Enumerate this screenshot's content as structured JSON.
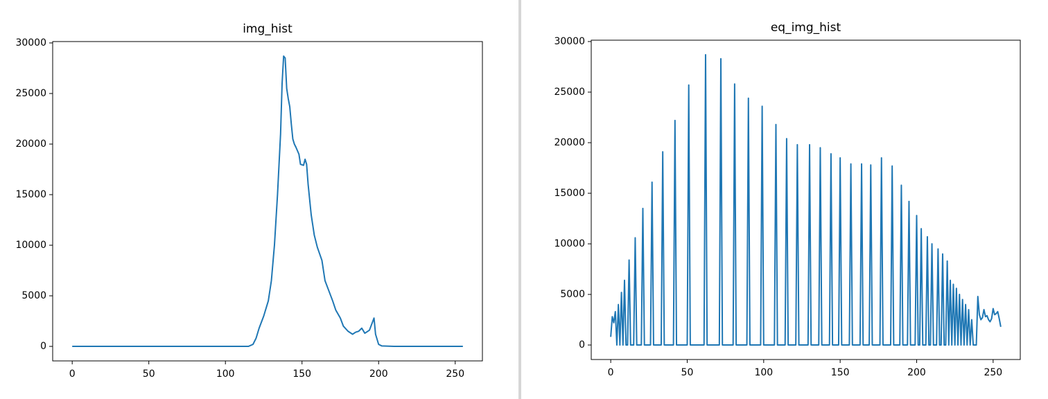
{
  "chart_data": [
    {
      "type": "line",
      "title": "img_hist",
      "color": "#1f77b4",
      "xlim": [
        -12.75,
        267.75
      ],
      "ylim": [
        -1435,
        30135
      ],
      "xticks": [
        0,
        50,
        100,
        150,
        200,
        250
      ],
      "yticks": [
        0,
        5000,
        10000,
        15000,
        20000,
        25000,
        30000
      ],
      "x": [
        0,
        115,
        118,
        120,
        122,
        125,
        128,
        130,
        132,
        134,
        136,
        137,
        138,
        139,
        140,
        141,
        142,
        143,
        144,
        145,
        146,
        148,
        149,
        151,
        152,
        153,
        154,
        156,
        158,
        160,
        163,
        165,
        167,
        170,
        172,
        175,
        177,
        180,
        183,
        185,
        187,
        189,
        191,
        194,
        196,
        197,
        198,
        200,
        202,
        210,
        255
      ],
      "values": [
        0,
        0,
        200,
        800,
        1800,
        3000,
        4500,
        6500,
        10000,
        15000,
        21000,
        26000,
        28700,
        28500,
        25500,
        24500,
        23700,
        22000,
        20500,
        20000,
        19700,
        19000,
        18000,
        17900,
        18500,
        18000,
        16000,
        13000,
        11000,
        9800,
        8500,
        6500,
        5700,
        4500,
        3600,
        2800,
        2000,
        1500,
        1200,
        1400,
        1500,
        1800,
        1300,
        1600,
        2400,
        2800,
        1200,
        200,
        50,
        0,
        0
      ]
    },
    {
      "type": "line",
      "title": "eq_img_hist",
      "color": "#1f77b4",
      "xlim": [
        -12.75,
        267.75
      ],
      "ylim": [
        -1435,
        30135
      ],
      "xticks": [
        0,
        50,
        100,
        150,
        200,
        250
      ],
      "yticks": [
        0,
        5000,
        10000,
        15000,
        20000,
        25000,
        30000
      ],
      "x": [
        0,
        1,
        2,
        3,
        4,
        5,
        6,
        7,
        8,
        9,
        10,
        11,
        12,
        13,
        15,
        16,
        17,
        20,
        21,
        22,
        26,
        27,
        28,
        33,
        34,
        35,
        41,
        42,
        43,
        50,
        51,
        52,
        61,
        62,
        63,
        71,
        72,
        73,
        80,
        81,
        82,
        89,
        90,
        91,
        98,
        99,
        100,
        107,
        108,
        109,
        114,
        115,
        116,
        121,
        122,
        123,
        129,
        130,
        131,
        136,
        137,
        138,
        143,
        144,
        145,
        149,
        150,
        151,
        156,
        157,
        158,
        163,
        164,
        165,
        169,
        170,
        171,
        176,
        177,
        178,
        183,
        184,
        185,
        189,
        190,
        191,
        194,
        195,
        196,
        199,
        200,
        201,
        202,
        203,
        204,
        206,
        207,
        208,
        209,
        210,
        211,
        213,
        214,
        215,
        216,
        217,
        218,
        219,
        220,
        221,
        222,
        223,
        224,
        225,
        226,
        227,
        228,
        229,
        230,
        231,
        232,
        233,
        234,
        235,
        236,
        237,
        239,
        240,
        241,
        242,
        243,
        244,
        245,
        246,
        247,
        248,
        249,
        250,
        251,
        252,
        253,
        254,
        255
      ],
      "values": [
        800,
        2800,
        2200,
        3300,
        0,
        4000,
        0,
        5200,
        0,
        6400,
        0,
        0,
        8400,
        0,
        0,
        10600,
        0,
        0,
        13500,
        0,
        0,
        16100,
        0,
        0,
        19100,
        0,
        0,
        22200,
        0,
        0,
        25700,
        0,
        0,
        28700,
        0,
        0,
        28300,
        0,
        0,
        25800,
        0,
        0,
        24400,
        0,
        0,
        23600,
        0,
        0,
        21800,
        0,
        0,
        20400,
        0,
        0,
        19800,
        0,
        0,
        19800,
        0,
        0,
        19500,
        0,
        0,
        18900,
        0,
        0,
        18500,
        0,
        0,
        17900,
        0,
        0,
        17900,
        0,
        0,
        17800,
        0,
        0,
        18500,
        0,
        0,
        17700,
        0,
        0,
        15800,
        0,
        0,
        14200,
        0,
        0,
        12800,
        0,
        0,
        11500,
        0,
        0,
        10700,
        0,
        0,
        10000,
        0,
        0,
        9500,
        0,
        0,
        9000,
        0,
        0,
        8300,
        0,
        6400,
        0,
        6000,
        0,
        5600,
        0,
        5000,
        0,
        4500,
        0,
        4000,
        0,
        3500,
        0,
        2500,
        0,
        0,
        4800,
        3000,
        2500,
        2700,
        3500,
        2800,
        2900,
        2500,
        2300,
        2600,
        3600,
        3000,
        3100,
        3300,
        2600,
        1800
      ]
    }
  ]
}
